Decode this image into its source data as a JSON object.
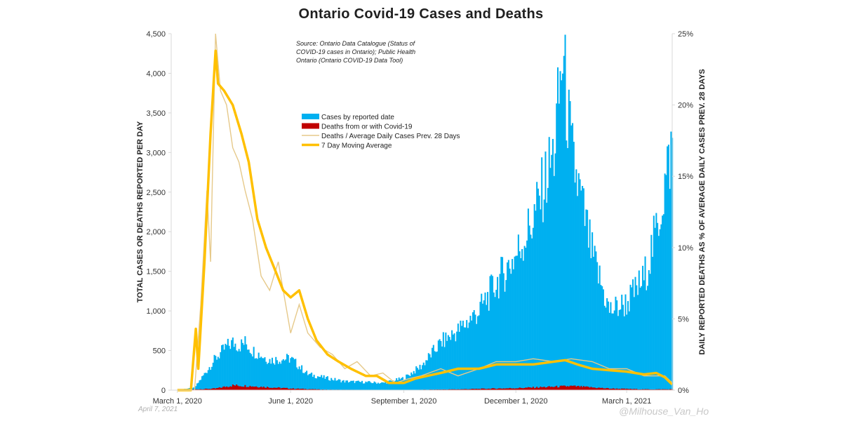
{
  "chart_data": {
    "type": "bar",
    "title": "Ontario Covid-19 Cases and Deaths",
    "ylabel_left": "TOTAL CASES OR DEATHS REPORTED PER DAY",
    "ylabel_right": "DAILY REPORTED DEATHS AS % OF AVERAGE DAILY CASES PREV. 28 DAYS",
    "y_left_range": [
      0,
      4500
    ],
    "y_right_range": [
      0,
      25
    ],
    "y_left_ticks": [
      "0",
      "500",
      "1,000",
      "1,500",
      "2,000",
      "2,500",
      "3,000",
      "3,500",
      "4,000",
      "4,500"
    ],
    "y_right_ticks": [
      "0%",
      "5%",
      "10%",
      "15%",
      "20%",
      "25%"
    ],
    "x_range": [
      "2020-02-25",
      "2021-04-07"
    ],
    "x_ticks": [
      {
        "date": "2020-03-01",
        "label": "March 1, 2020"
      },
      {
        "date": "2020-06-01",
        "label": "June 1, 2020"
      },
      {
        "date": "2020-09-01",
        "label": "September 1, 2020"
      },
      {
        "date": "2020-12-01",
        "label": "December 1, 2020"
      },
      {
        "date": "2021-03-01",
        "label": "March 1, 2021"
      }
    ],
    "source_note": [
      "Source: Ontario Data Catalogue (Status of",
      "COVID-19 cases in Ontario); Public Health",
      "Ontario (Ontario COVID-19 Data Tool)"
    ],
    "legend": [
      "Cases by reported date",
      "Deaths from or with Covid-19",
      "Deaths / Average Daily Cases Prev. 28 Days",
      "7 Day Moving Average"
    ],
    "colors": {
      "cases": "#00b0f0",
      "deaths": "#c00000",
      "ratio": "#e6c98a",
      "moving_average": "#ffc000",
      "axis": "#d9d9d9"
    },
    "series": [
      {
        "name": "Cases by reported date",
        "axis": "left",
        "style": "bars",
        "x": [
          "2020-03-01",
          "2020-03-15",
          "2020-04-01",
          "2020-04-10",
          "2020-04-15",
          "2020-04-20",
          "2020-04-25",
          "2020-05-01",
          "2020-05-15",
          "2020-06-01",
          "2020-06-15",
          "2020-07-01",
          "2020-07-15",
          "2020-08-01",
          "2020-08-15",
          "2020-09-01",
          "2020-09-15",
          "2020-10-01",
          "2020-10-15",
          "2020-11-01",
          "2020-11-15",
          "2020-12-01",
          "2020-12-15",
          "2021-01-01",
          "2021-01-08",
          "2021-01-15",
          "2021-02-01",
          "2021-02-15",
          "2021-03-01",
          "2021-03-15",
          "2021-03-25",
          "2021-04-07"
        ],
        "values": [
          5,
          30,
          400,
          550,
          600,
          560,
          600,
          500,
          380,
          400,
          200,
          150,
          110,
          100,
          90,
          150,
          300,
          600,
          750,
          1000,
          1350,
          1700,
          2150,
          3000,
          4200,
          3000,
          1700,
          1000,
          1100,
          1400,
          2000,
          3100
        ]
      },
      {
        "name": "Deaths from or with Covid-19",
        "axis": "left",
        "style": "bars",
        "x": [
          "2020-03-01",
          "2020-04-01",
          "2020-04-15",
          "2020-05-01",
          "2020-05-15",
          "2020-06-01",
          "2020-07-01",
          "2020-09-01",
          "2020-10-15",
          "2020-12-01",
          "2021-01-15",
          "2021-02-15",
          "2021-03-15",
          "2021-04-07"
        ],
        "values": [
          0,
          20,
          60,
          50,
          35,
          20,
          5,
          2,
          10,
          25,
          50,
          20,
          10,
          10
        ]
      },
      {
        "name": "Deaths / Average Daily Cases Prev. 28 Days",
        "axis": "right",
        "style": "line",
        "x": [
          "2020-03-15",
          "2020-03-20",
          "2020-03-25",
          "2020-03-28",
          "2020-04-01",
          "2020-04-05",
          "2020-04-10",
          "2020-04-15",
          "2020-04-20",
          "2020-04-25",
          "2020-05-01",
          "2020-05-08",
          "2020-05-15",
          "2020-05-22",
          "2020-06-01",
          "2020-06-08",
          "2020-06-15",
          "2020-06-25",
          "2020-07-05",
          "2020-07-15",
          "2020-07-25",
          "2020-08-05",
          "2020-08-15",
          "2020-08-25",
          "2020-09-05",
          "2020-09-15",
          "2020-10-01",
          "2020-10-15",
          "2020-11-01",
          "2020-11-15",
          "2020-12-01",
          "2020-12-15",
          "2021-01-01",
          "2021-01-15",
          "2021-02-01",
          "2021-02-15",
          "2021-03-01",
          "2021-03-15",
          "2021-04-01",
          "2021-04-07"
        ],
        "values": [
          0,
          6,
          14,
          9,
          25,
          21,
          20,
          17,
          16,
          14,
          12,
          8,
          7,
          9,
          4,
          6,
          4,
          3,
          2.5,
          1.5,
          2,
          1,
          1.2,
          0.5,
          0.8,
          1,
          1.5,
          1,
          1.5,
          2,
          2,
          2.2,
          2,
          2.2,
          2,
          1.5,
          1.5,
          1,
          1,
          0.5
        ]
      },
      {
        "name": "7 Day Moving Average",
        "axis": "right",
        "style": "line",
        "x": [
          "2020-03-01",
          "2020-03-12",
          "2020-03-16",
          "2020-03-18",
          "2020-03-23",
          "2020-03-28",
          "2020-04-01",
          "2020-04-03",
          "2020-04-08",
          "2020-04-15",
          "2020-04-22",
          "2020-04-28",
          "2020-05-05",
          "2020-05-12",
          "2020-05-19",
          "2020-05-26",
          "2020-06-01",
          "2020-06-08",
          "2020-06-15",
          "2020-06-22",
          "2020-07-01",
          "2020-07-10",
          "2020-07-20",
          "2020-08-01",
          "2020-08-10",
          "2020-08-20",
          "2020-09-01",
          "2020-09-10",
          "2020-09-20",
          "2020-10-01",
          "2020-10-15",
          "2020-11-01",
          "2020-11-15",
          "2020-12-01",
          "2020-12-15",
          "2021-01-01",
          "2021-01-10",
          "2021-01-20",
          "2021-02-01",
          "2021-02-15",
          "2021-03-01",
          "2021-03-15",
          "2021-03-25",
          "2021-04-01",
          "2021-04-07"
        ],
        "values": [
          0,
          0,
          4.3,
          1.5,
          9,
          18,
          23.8,
          21.5,
          21,
          20,
          18,
          16,
          12,
          10,
          8.5,
          7,
          6.5,
          7,
          5,
          3.5,
          2.5,
          2,
          1.5,
          1,
          1,
          0.5,
          0.5,
          0.8,
          1,
          1.2,
          1.5,
          1.5,
          1.8,
          1.8,
          1.8,
          2,
          2.1,
          1.8,
          1.5,
          1.4,
          1.3,
          1.1,
          1.2,
          0.9,
          0.4
        ]
      }
    ],
    "grid": false,
    "legend_position": "center-left"
  },
  "footer": {
    "date": "April 7, 2021",
    "credit": "@Milhouse_Van_Ho"
  }
}
